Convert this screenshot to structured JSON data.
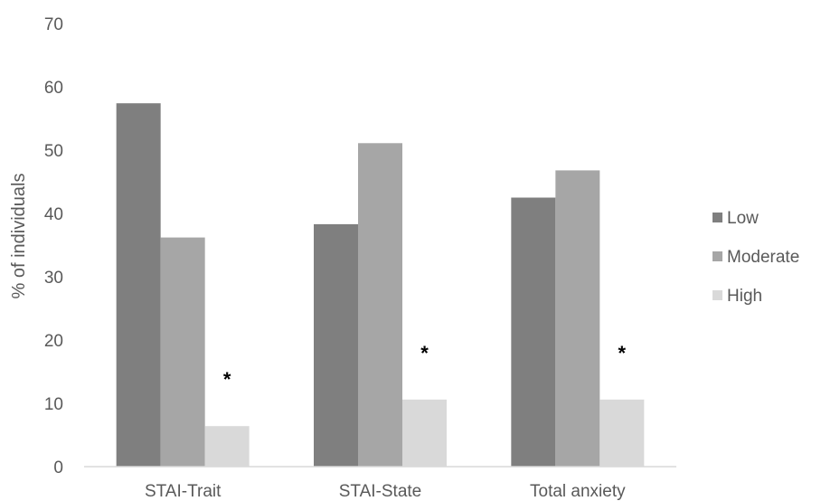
{
  "chart_data": {
    "type": "bar",
    "title": "",
    "xlabel": "",
    "ylabel": "% of individuals",
    "ylim": [
      0,
      70
    ],
    "yticks": [
      0,
      10,
      20,
      30,
      40,
      50,
      60,
      70
    ],
    "categories": [
      "STAI-Trait",
      "STAI-State",
      "Total anxiety"
    ],
    "series": [
      {
        "name": "Low",
        "color": "#7f7f7f",
        "values": [
          57.4,
          38.3,
          42.5
        ]
      },
      {
        "name": "Moderate",
        "color": "#a6a6a6",
        "values": [
          36.2,
          51.1,
          46.8
        ]
      },
      {
        "name": "High",
        "color": "#d9d9d9",
        "values": [
          6.4,
          10.6,
          10.6
        ]
      }
    ],
    "annotations": [
      "*",
      "*",
      "*"
    ],
    "grid": false,
    "legend_position": "right"
  }
}
